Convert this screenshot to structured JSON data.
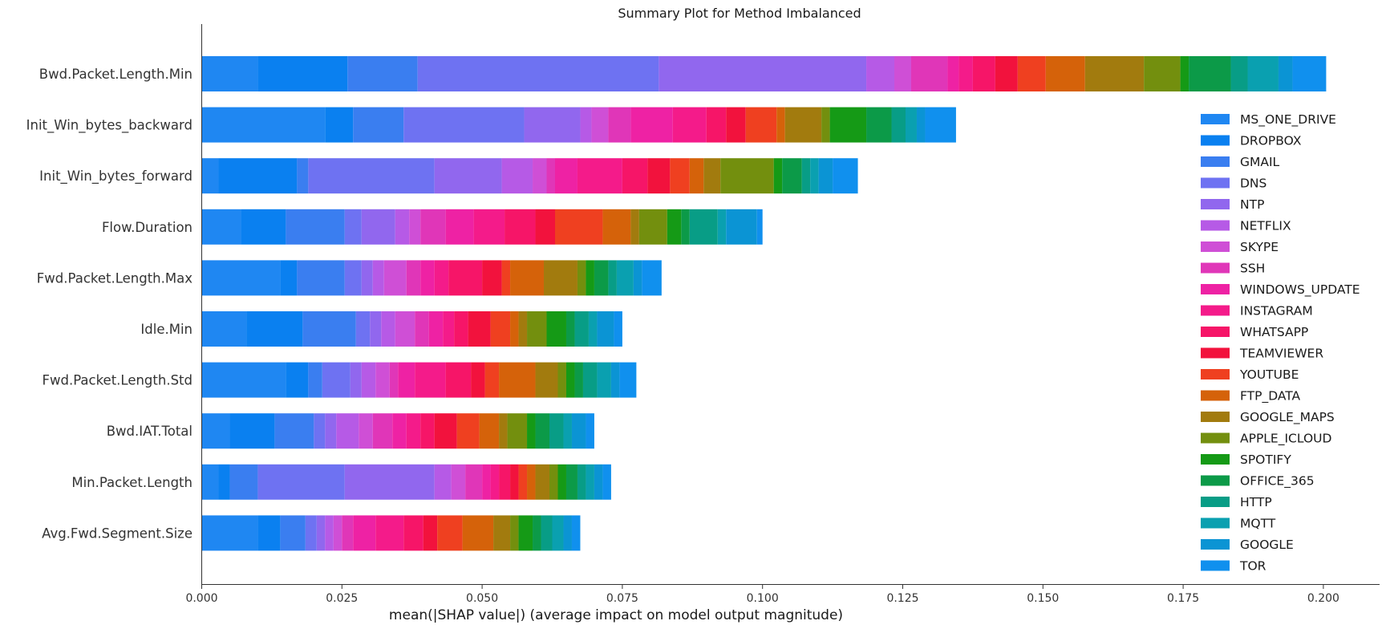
{
  "chart_data": {
    "type": "bar",
    "orientation": "horizontal",
    "stacked": true,
    "title": "Summary Plot for Method Imbalanced",
    "xlabel": "mean(|SHAP value|) (average impact on model output magnitude)",
    "ylabel": "",
    "xlim": [
      0,
      0.21
    ],
    "xticks": [
      "0.000",
      "0.025",
      "0.050",
      "0.075",
      "0.100",
      "0.125",
      "0.150",
      "0.175",
      "0.200"
    ],
    "grid": false,
    "legend_position": "right",
    "categories": [
      "Bwd.Packet.Length.Min",
      "Init_Win_bytes_backward",
      "Init_Win_bytes_forward",
      "Flow.Duration",
      "Fwd.Packet.Length.Max",
      "Idle.Min",
      "Fwd.Packet.Length.Std",
      "Bwd.IAT.Total",
      "Min.Packet.Length",
      "Avg.Fwd.Segment.Size"
    ],
    "series": [
      {
        "name": "MS_ONE_DRIVE",
        "color": "#1f87f2",
        "values": [
          0.01,
          0.022,
          0.003,
          0.007,
          0.014,
          0.008,
          0.015,
          0.005,
          0.003,
          0.01
        ]
      },
      {
        "name": "DROPBOX",
        "color": "#0a80f0",
        "values": [
          0.016,
          0.005,
          0.014,
          0.008,
          0.003,
          0.01,
          0.004,
          0.008,
          0.002,
          0.004
        ]
      },
      {
        "name": "GMAIL",
        "color": "#3a7ef0",
        "values": [
          0.0125,
          0.009,
          0.002,
          0.0105,
          0.0085,
          0.0095,
          0.0025,
          0.007,
          0.005,
          0.0045
        ]
      },
      {
        "name": "DNS",
        "color": "#6e72f2",
        "values": [
          0.043,
          0.0215,
          0.0225,
          0.003,
          0.003,
          0.0025,
          0.005,
          0.002,
          0.0155,
          0.002
        ]
      },
      {
        "name": "NTP",
        "color": "#9167ee",
        "values": [
          0.037,
          0.01,
          0.012,
          0.006,
          0.002,
          0.002,
          0.002,
          0.002,
          0.016,
          0.0015
        ]
      },
      {
        "name": "NETFLIX",
        "color": "#b65ae6",
        "values": [
          0.005,
          0.002,
          0.0055,
          0.0025,
          0.002,
          0.0025,
          0.0025,
          0.004,
          0.003,
          0.0015
        ]
      },
      {
        "name": "SKYPE",
        "color": "#cf4fd6",
        "values": [
          0.003,
          0.003,
          0.0025,
          0.002,
          0.004,
          0.0035,
          0.0025,
          0.0025,
          0.0025,
          0.0015
        ]
      },
      {
        "name": "SSH",
        "color": "#e036b8",
        "values": [
          0.0065,
          0.004,
          0.0015,
          0.0045,
          0.0025,
          0.0025,
          0.0015,
          0.0035,
          0.003,
          0.002
        ]
      },
      {
        "name": "WINDOWS_UPDATE",
        "color": "#ee22a4",
        "values": [
          0.002,
          0.0075,
          0.004,
          0.005,
          0.0025,
          0.0025,
          0.003,
          0.0025,
          0.0015,
          0.004
        ]
      },
      {
        "name": "INSTAGRAM",
        "color": "#f41b8a",
        "values": [
          0.0025,
          0.006,
          0.008,
          0.0055,
          0.0025,
          0.002,
          0.0055,
          0.0025,
          0.0015,
          0.005
        ]
      },
      {
        "name": "WHATSAPP",
        "color": "#f61568",
        "values": [
          0.004,
          0.0035,
          0.0045,
          0.0055,
          0.006,
          0.0025,
          0.0045,
          0.0025,
          0.002,
          0.0035
        ]
      },
      {
        "name": "TEAMVIEWER",
        "color": "#f2123d",
        "values": [
          0.004,
          0.0035,
          0.004,
          0.0035,
          0.0035,
          0.004,
          0.0025,
          0.004,
          0.0015,
          0.0025
        ]
      },
      {
        "name": "YOUTUBE",
        "color": "#ef4020",
        "values": [
          0.005,
          0.0055,
          0.0035,
          0.0085,
          0.0015,
          0.0035,
          0.0025,
          0.004,
          0.0015,
          0.0045
        ]
      },
      {
        "name": "FTP_DATA",
        "color": "#d5620a",
        "values": [
          0.007,
          0.0015,
          0.0025,
          0.005,
          0.006,
          0.0015,
          0.0065,
          0.0035,
          0.0015,
          0.0055
        ]
      },
      {
        "name": "GOOGLE_MAPS",
        "color": "#a27b0e",
        "values": [
          0.0105,
          0.0065,
          0.003,
          0.0015,
          0.006,
          0.0015,
          0.004,
          0.0015,
          0.0025,
          0.003
        ]
      },
      {
        "name": "APPLE_ICLOUD",
        "color": "#738f0e",
        "values": [
          0.0065,
          0.0015,
          0.0095,
          0.005,
          0.0015,
          0.0035,
          0.0015,
          0.0035,
          0.0015,
          0.0015
        ]
      },
      {
        "name": "SPOTIFY",
        "color": "#159a16",
        "values": [
          0.0015,
          0.0065,
          0.0015,
          0.0025,
          0.0015,
          0.0035,
          0.0015,
          0.0015,
          0.0015,
          0.0025
        ]
      },
      {
        "name": "OFFICE_365",
        "color": "#0c9a48",
        "values": [
          0.0075,
          0.0045,
          0.0035,
          0.0015,
          0.0025,
          0.0015,
          0.0015,
          0.0025,
          0.002,
          0.0015
        ]
      },
      {
        "name": "HTTP",
        "color": "#089d86",
        "values": [
          0.003,
          0.0025,
          0.0015,
          0.005,
          0.0015,
          0.0025,
          0.0025,
          0.0025,
          0.0015,
          0.002
        ]
      },
      {
        "name": "MQTT",
        "color": "#0aa0b0",
        "values": [
          0.0055,
          0.002,
          0.0015,
          0.0015,
          0.003,
          0.0015,
          0.0025,
          0.0015,
          0.0015,
          0.002
        ]
      },
      {
        "name": "GOOGLE",
        "color": "#0b94d4",
        "values": [
          0.0025,
          0.0015,
          0.0025,
          0.0055,
          0.0015,
          0.003,
          0.0015,
          0.0025,
          0.0015,
          0.0015
        ]
      },
      {
        "name": "TOR",
        "color": "#1090ee",
        "values": [
          0.006,
          0.0055,
          0.0045,
          0.001,
          0.0035,
          0.0015,
          0.003,
          0.0015,
          0.0015,
          0.0015
        ]
      }
    ]
  }
}
